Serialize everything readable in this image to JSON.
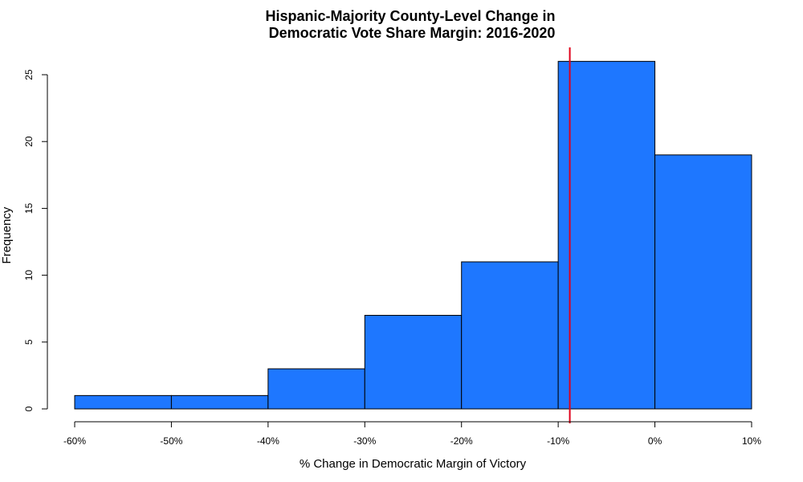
{
  "chart_data": {
    "type": "bar",
    "title_lines": [
      "Hispanic-Majority County-Level Change in",
      "Democratic Vote Share Margin: 2016-2020"
    ],
    "xlabel": "% Change in Democratic Margin of Victory",
    "ylabel": "Frequency",
    "bins": [
      {
        "from": -60,
        "to": -50,
        "count": 1
      },
      {
        "from": -50,
        "to": -40,
        "count": 1
      },
      {
        "from": -40,
        "to": -30,
        "count": 3
      },
      {
        "from": -30,
        "to": -20,
        "count": 7
      },
      {
        "from": -20,
        "to": -10,
        "count": 11
      },
      {
        "from": -10,
        "to": 0,
        "count": 26
      },
      {
        "from": 0,
        "to": 10,
        "count": 19
      }
    ],
    "x_ticks": [
      -60,
      -50,
      -40,
      -30,
      -20,
      -10,
      0,
      10
    ],
    "x_tick_labels": [
      "-60%",
      "-50%",
      "-40%",
      "-30%",
      "-20%",
      "-10%",
      "0%",
      "10%"
    ],
    "y_ticks": [
      0,
      5,
      10,
      15,
      20,
      25
    ],
    "y_tick_labels": [
      "0",
      "5",
      "10",
      "15",
      "20",
      "25"
    ],
    "xlim": [
      -60,
      10
    ],
    "ylim": [
      0,
      25
    ],
    "reference_line_x": -8.8,
    "grid": false,
    "colors": {
      "bar_fill": "#1e77ff",
      "bar_stroke": "#000000",
      "reference_line": "#e0001b",
      "axis": "#000000"
    }
  }
}
